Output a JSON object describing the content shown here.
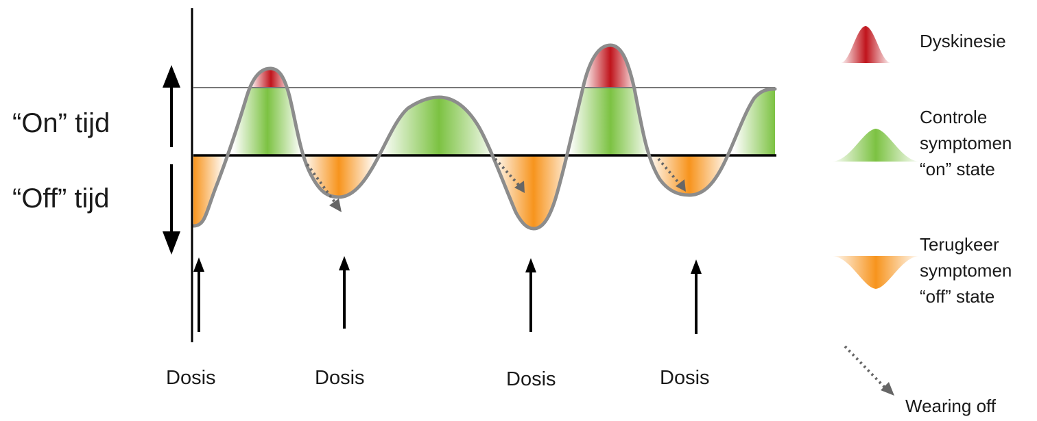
{
  "labels": {
    "on_time": "“On” tijd",
    "off_time": "“Off” tijd",
    "dose": "Dosis"
  },
  "doses": [
    "Dosis",
    "Dosis",
    "Dosis",
    "Dosis"
  ],
  "legend": {
    "dyskinesia": {
      "label": "Dyskinesie",
      "color": "#c0141c"
    },
    "on_state": {
      "lines": [
        "Controle",
        "symptomen",
        "“on” state"
      ],
      "color": "#7cc242"
    },
    "off_state": {
      "lines": [
        "Terugkeer",
        "symptomen",
        "“off” state"
      ],
      "color": "#f7941d"
    },
    "wearing_off": {
      "label": "Wearing off",
      "color": "#666666"
    }
  },
  "colors": {
    "curve": "#8c8c8c",
    "axis": "#000000",
    "threshold_line": "#777777"
  }
}
